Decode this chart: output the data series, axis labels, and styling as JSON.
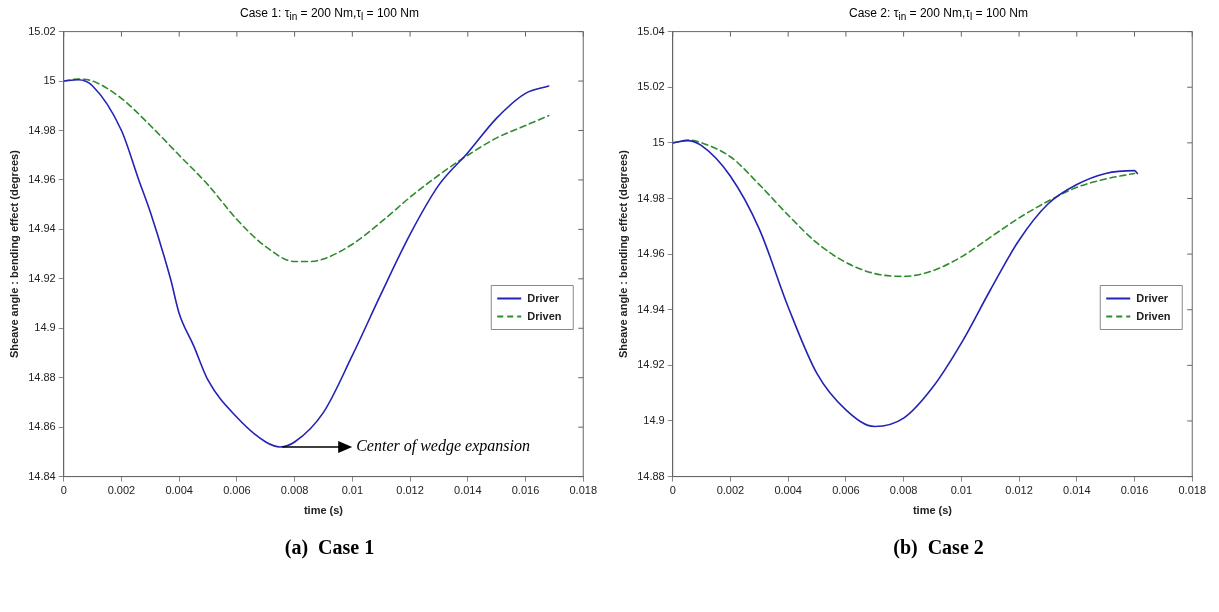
{
  "chart_data": [
    {
      "type": "line",
      "title": "Case 1: τ$_{in}$ = 200 Nm,τ$_{l}$ = 100 Nm",
      "xlabel": "time (s)",
      "ylabel": "Sheave angle : bending effect (degrees)",
      "xlim": [
        0,
        0.018
      ],
      "xticks": [
        0,
        0.002,
        0.004,
        0.006,
        0.008,
        0.01,
        0.012,
        0.014,
        0.016,
        0.018
      ],
      "ylim": [
        14.84,
        15.02
      ],
      "yticks": [
        14.84,
        14.86,
        14.88,
        14.9,
        14.92,
        14.94,
        14.96,
        14.98,
        15,
        15.02
      ],
      "grid": false,
      "legend": "right",
      "marker": "none",
      "series": [
        {
          "name": "Driver",
          "color": "#2323b4",
          "line_style": "solid",
          "x": [
            0,
            0.0005,
            0.001,
            0.002,
            0.0026,
            0.003,
            0.0037,
            0.004,
            0.0045,
            0.005,
            0.006,
            0.007,
            0.0075,
            0.008,
            0.009,
            0.01,
            0.011,
            0.012,
            0.013,
            0.014,
            0.015,
            0.016,
            0.0168
          ],
          "values": [
            15,
            15.0005,
            14.998,
            14.98,
            14.96,
            14.947,
            14.92,
            14.906,
            14.893,
            14.879,
            14.864,
            14.854,
            14.852,
            14.854,
            14.866,
            14.889,
            14.914,
            14.938,
            14.958,
            14.971,
            14.985,
            14.995,
            14.998
          ]
        },
        {
          "name": "Driven",
          "color": "#2e8b2e",
          "line_style": "dashed",
          "x": [
            0,
            0.0005,
            0.001,
            0.002,
            0.003,
            0.004,
            0.005,
            0.006,
            0.007,
            0.008,
            0.0085,
            0.009,
            0.01,
            0.011,
            0.012,
            0.013,
            0.014,
            0.015,
            0.016,
            0.0168
          ],
          "values": [
            15,
            15.0008,
            15,
            14.993,
            14.982,
            14.97,
            14.958,
            14.944,
            14.933,
            14.927,
            14.927,
            14.928,
            14.934,
            14.943,
            14.953,
            14.962,
            14.97,
            14.977,
            14.982,
            14.986
          ]
        }
      ],
      "annotations": [
        {
          "text": "Center of wedge expansion",
          "x": 0.0075,
          "y": 14.852
        },
        "(a)  Case 1"
      ]
    },
    {
      "type": "line",
      "title": "Case 2: τ$_{in}$ = 200 Nm,τ$_{l}$ = 100 Nm",
      "xlabel": "time (s)",
      "ylabel": "Sheave angle : bending effect (degrees)",
      "xlim": [
        0,
        0.018
      ],
      "xticks": [
        0,
        0.002,
        0.004,
        0.006,
        0.008,
        0.01,
        0.012,
        0.014,
        0.016,
        0.018
      ],
      "ylim": [
        14.88,
        15.04
      ],
      "yticks": [
        14.88,
        14.9,
        14.92,
        14.94,
        14.96,
        14.98,
        15,
        15.02,
        15.04
      ],
      "grid": false,
      "legend": "right",
      "marker": "none",
      "series": [
        {
          "name": "Driver",
          "color": "#2323b4",
          "line_style": "solid",
          "x": [
            0,
            0.0005,
            0.001,
            0.002,
            0.003,
            0.004,
            0.005,
            0.006,
            0.007,
            0.008,
            0.009,
            0.01,
            0.011,
            0.012,
            0.013,
            0.014,
            0.015,
            0.016,
            0.0161
          ],
          "values": [
            15,
            15.0008,
            14.999,
            14.988,
            14.969,
            14.941,
            14.917,
            14.904,
            14.898,
            14.901,
            14.912,
            14.928,
            14.947,
            14.965,
            14.978,
            14.985,
            14.989,
            14.99,
            14.989
          ]
        },
        {
          "name": "Driven",
          "color": "#2e8b2e",
          "line_style": "dashed",
          "x": [
            0,
            0.0006,
            0.001,
            0.002,
            0.003,
            0.004,
            0.005,
            0.006,
            0.007,
            0.008,
            0.009,
            0.01,
            0.011,
            0.012,
            0.013,
            0.014,
            0.015,
            0.016
          ],
          "values": [
            15,
            15.001,
            15,
            14.995,
            14.985,
            14.974,
            14.964,
            14.957,
            14.953,
            14.952,
            14.954,
            14.959,
            14.966,
            14.973,
            14.979,
            14.984,
            14.987,
            14.989
          ]
        }
      ],
      "annotations": [
        "(b)  Case 2"
      ]
    }
  ]
}
